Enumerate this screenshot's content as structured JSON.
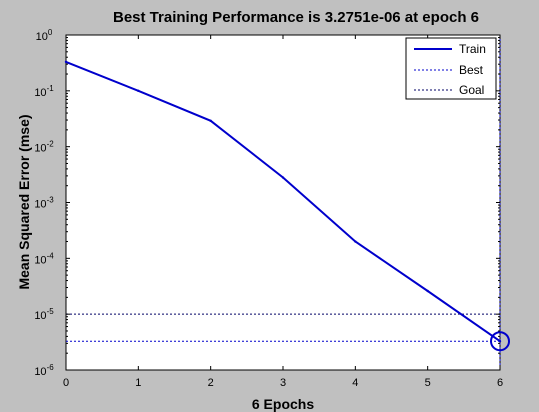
{
  "window": {
    "background": "#c0c0c0"
  },
  "chart_data": {
    "type": "line",
    "title": "Best Training Performance is 3.2751e-06 at epoch 6",
    "xlabel": "6 Epochs",
    "ylabel": "Mean Squared Error  (mse)",
    "xlim": [
      0,
      6
    ],
    "ylim": [
      1e-06,
      1
    ],
    "yscale": "log",
    "x_ticks": [
      "0",
      "1",
      "2",
      "3",
      "4",
      "5",
      "6"
    ],
    "y_ticks": [
      {
        "base": "10",
        "exp": "0",
        "value": 1
      },
      {
        "base": "10",
        "exp": "-1",
        "value": 0.1
      },
      {
        "base": "10",
        "exp": "-2",
        "value": 0.01
      },
      {
        "base": "10",
        "exp": "-3",
        "value": 0.001
      },
      {
        "base": "10",
        "exp": "-4",
        "value": 0.0001
      },
      {
        "base": "10",
        "exp": "-5",
        "value": 1e-05
      },
      {
        "base": "10",
        "exp": "-6",
        "value": 1e-06
      }
    ],
    "series": [
      {
        "name": "Train",
        "color": "#0000cc",
        "style": "solid",
        "x": [
          0,
          1,
          2,
          3,
          4,
          5,
          6
        ],
        "y": [
          0.33,
          0.1,
          0.029,
          0.0028,
          0.0002,
          2.6e-05,
          3.2751e-06
        ]
      }
    ],
    "best": {
      "name": "Best",
      "epoch": 6,
      "value": 3.2751e-06,
      "color": "#0000cc",
      "style": "dotted"
    },
    "goal": {
      "name": "Goal",
      "value": 1e-05,
      "color": "#000066",
      "style": "dotted"
    },
    "legend": {
      "placement": "top-right",
      "entries": [
        "Train",
        "Best",
        "Goal"
      ]
    },
    "grid": false
  }
}
